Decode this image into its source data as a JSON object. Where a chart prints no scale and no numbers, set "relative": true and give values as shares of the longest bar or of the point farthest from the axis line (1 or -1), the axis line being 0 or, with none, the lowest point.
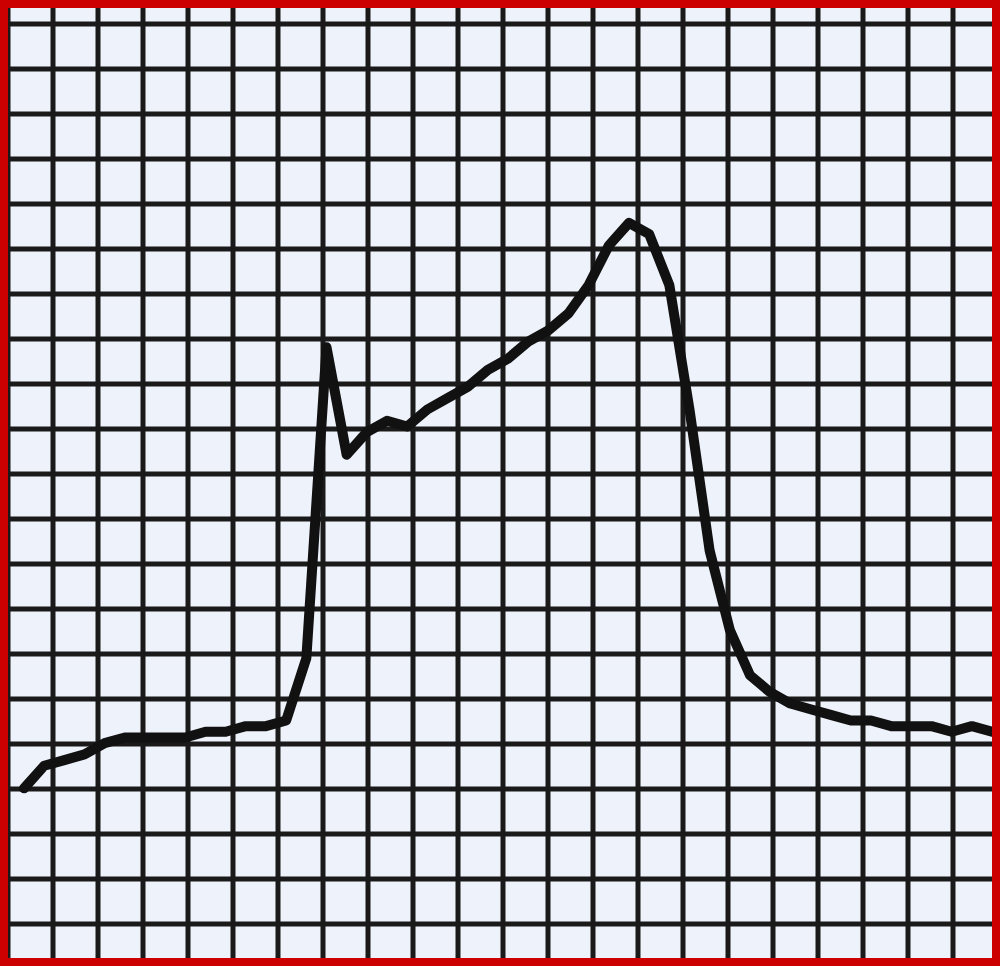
{
  "chart_data": {
    "type": "line",
    "relative": true,
    "grid": true,
    "marker": "none",
    "line_style": "solid",
    "categories": [
      null,
      null,
      null,
      null,
      null,
      null,
      null,
      null,
      null,
      null,
      null,
      null,
      null,
      null,
      null,
      null,
      null,
      null,
      null,
      null,
      null,
      null,
      null,
      null,
      null,
      null,
      null,
      null,
      null,
      null,
      null,
      null,
      null,
      null,
      null,
      null,
      null,
      null,
      null,
      null,
      null,
      null,
      null,
      null,
      null,
      null,
      null,
      null,
      null
    ],
    "series": [
      {
        "color": "#111111",
        "values": [
          0,
          0.04,
          0.05,
          0.06,
          0.08,
          0.09,
          0.09,
          0.09,
          0.09,
          0.1,
          0.1,
          0.11,
          0.11,
          0.12,
          0.23,
          0.78,
          0.59,
          0.63,
          0.65,
          0.64,
          0.67,
          0.69,
          0.71,
          0.74,
          0.76,
          0.79,
          0.81,
          0.84,
          0.89,
          0.96,
          1,
          0.98,
          0.89,
          0.67,
          0.42,
          0.28,
          0.2,
          0.17,
          0.15,
          0.14,
          0.13,
          0.12,
          0.12,
          0.11,
          0.11,
          0.11,
          0.1,
          0.11,
          0.1
        ]
      }
    ]
  }
}
